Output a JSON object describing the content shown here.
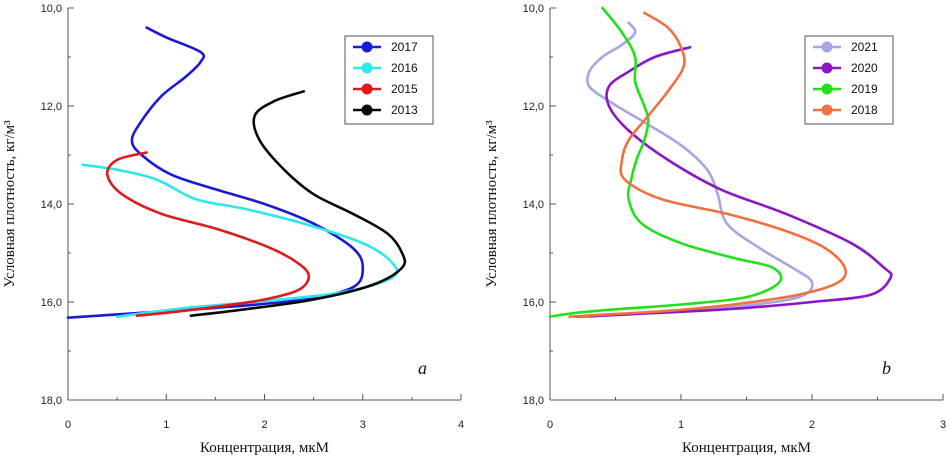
{
  "chart_data": [
    {
      "type": "line",
      "panel_label": "a",
      "xlabel": "Концентрация, мкМ",
      "ylabel": "Условная плотность, кг/м³",
      "xlim": [
        0,
        4
      ],
      "ylim": [
        10.0,
        18.0
      ],
      "y_inverted": true,
      "x_ticks": [
        "0",
        "1",
        "2",
        "3",
        "4"
      ],
      "y_ticks": [
        "10,0",
        "12,0",
        "14,0",
        "16,0",
        "18,0"
      ],
      "legend_position": "top-right",
      "series": [
        {
          "name": "2017",
          "color": "#1a1ad6",
          "points": [
            [
              0.8,
              10.4
            ],
            [
              1.0,
              10.6
            ],
            [
              1.35,
              10.9
            ],
            [
              1.35,
              11.1
            ],
            [
              1.2,
              11.4
            ],
            [
              0.95,
              11.8
            ],
            [
              0.75,
              12.3
            ],
            [
              0.65,
              12.7
            ],
            [
              0.75,
              13.0
            ],
            [
              1.05,
              13.4
            ],
            [
              1.5,
              13.7
            ],
            [
              2.0,
              14.0
            ],
            [
              2.5,
              14.4
            ],
            [
              2.9,
              14.9
            ],
            [
              3.0,
              15.3
            ],
            [
              2.9,
              15.7
            ],
            [
              2.4,
              15.95
            ],
            [
              1.5,
              16.12
            ],
            [
              0.6,
              16.24
            ],
            [
              0.0,
              16.32
            ]
          ]
        },
        {
          "name": "2016",
          "color": "#2ee6ee",
          "points": [
            [
              0.15,
              13.2
            ],
            [
              0.5,
              13.3
            ],
            [
              0.9,
              13.5
            ],
            [
              1.3,
              13.9
            ],
            [
              1.8,
              14.1
            ],
            [
              2.4,
              14.4
            ],
            [
              3.0,
              14.8
            ],
            [
              3.3,
              15.2
            ],
            [
              3.3,
              15.5
            ],
            [
              2.8,
              15.8
            ],
            [
              2.0,
              15.98
            ],
            [
              1.2,
              16.12
            ],
            [
              0.5,
              16.3
            ]
          ]
        },
        {
          "name": "2015",
          "color": "#e01a1a",
          "points": [
            [
              0.8,
              12.95
            ],
            [
              0.5,
              13.1
            ],
            [
              0.4,
              13.4
            ],
            [
              0.55,
              13.8
            ],
            [
              0.95,
              14.2
            ],
            [
              1.5,
              14.5
            ],
            [
              2.0,
              14.85
            ],
            [
              2.3,
              15.15
            ],
            [
              2.45,
              15.45
            ],
            [
              2.35,
              15.75
            ],
            [
              2.0,
              15.95
            ],
            [
              1.5,
              16.1
            ],
            [
              1.0,
              16.22
            ],
            [
              0.7,
              16.28
            ]
          ]
        },
        {
          "name": "2013",
          "color": "#0a0a0a",
          "points": [
            [
              2.4,
              11.7
            ],
            [
              2.1,
              11.9
            ],
            [
              1.9,
              12.2
            ],
            [
              1.95,
              12.7
            ],
            [
              2.2,
              13.3
            ],
            [
              2.5,
              13.8
            ],
            [
              2.9,
              14.2
            ],
            [
              3.25,
              14.6
            ],
            [
              3.4,
              15.0
            ],
            [
              3.4,
              15.3
            ],
            [
              3.1,
              15.65
            ],
            [
              2.5,
              15.95
            ],
            [
              1.8,
              16.15
            ],
            [
              1.25,
              16.28
            ]
          ]
        }
      ]
    },
    {
      "type": "line",
      "panel_label": "b",
      "xlabel": "Концентрация, мкМ",
      "ylabel": "Условная плотность, кг/м³",
      "xlim": [
        0,
        3
      ],
      "ylim": [
        10.0,
        18.0
      ],
      "y_inverted": true,
      "x_ticks": [
        "0",
        "1",
        "2",
        "3"
      ],
      "y_ticks": [
        "10,0",
        "12,0",
        "14,0",
        "16,0",
        "18,0"
      ],
      "legend_position": "top-right",
      "series": [
        {
          "name": "2021",
          "color": "#a9a5e2",
          "points": [
            [
              0.6,
              10.3
            ],
            [
              0.65,
              10.5
            ],
            [
              0.55,
              10.75
            ],
            [
              0.4,
              11.0
            ],
            [
              0.3,
              11.3
            ],
            [
              0.3,
              11.6
            ],
            [
              0.45,
              11.9
            ],
            [
              0.7,
              12.3
            ],
            [
              1.0,
              12.8
            ],
            [
              1.2,
              13.3
            ],
            [
              1.28,
              13.8
            ],
            [
              1.35,
              14.4
            ],
            [
              1.6,
              14.9
            ],
            [
              1.85,
              15.3
            ],
            [
              2.0,
              15.6
            ],
            [
              1.9,
              15.9
            ],
            [
              1.4,
              16.1
            ],
            [
              0.8,
              16.22
            ],
            [
              0.3,
              16.3
            ]
          ]
        },
        {
          "name": "2020",
          "color": "#8a16c4",
          "points": [
            [
              1.07,
              10.8
            ],
            [
              0.8,
              11.0
            ],
            [
              0.6,
              11.3
            ],
            [
              0.45,
              11.6
            ],
            [
              0.45,
              12.0
            ],
            [
              0.6,
              12.5
            ],
            [
              0.9,
              13.1
            ],
            [
              1.3,
              13.7
            ],
            [
              1.8,
              14.2
            ],
            [
              2.3,
              14.8
            ],
            [
              2.55,
              15.3
            ],
            [
              2.6,
              15.5
            ],
            [
              2.45,
              15.85
            ],
            [
              2.0,
              16.0
            ],
            [
              1.5,
              16.12
            ],
            [
              1.0,
              16.2
            ],
            [
              0.6,
              16.25
            ],
            [
              0.2,
              16.3
            ]
          ]
        },
        {
          "name": "2019",
          "color": "#22e01a",
          "points": [
            [
              0.4,
              10.0
            ],
            [
              0.55,
              10.5
            ],
            [
              0.65,
              11.0
            ],
            [
              0.65,
              11.5
            ],
            [
              0.72,
              12.0
            ],
            [
              0.75,
              12.3
            ],
            [
              0.72,
              12.7
            ],
            [
              0.66,
              13.1
            ],
            [
              0.62,
              13.5
            ],
            [
              0.6,
              13.9
            ],
            [
              0.7,
              14.4
            ],
            [
              1.0,
              14.8
            ],
            [
              1.4,
              15.1
            ],
            [
              1.7,
              15.3
            ],
            [
              1.75,
              15.6
            ],
            [
              1.5,
              15.9
            ],
            [
              1.0,
              16.05
            ],
            [
              0.5,
              16.15
            ],
            [
              0.2,
              16.22
            ],
            [
              0.0,
              16.3
            ]
          ]
        },
        {
          "name": "2018",
          "color": "#f07040",
          "points": [
            [
              0.72,
              10.1
            ],
            [
              0.9,
              10.4
            ],
            [
              1.0,
              10.8
            ],
            [
              1.02,
              11.2
            ],
            [
              0.9,
              11.7
            ],
            [
              0.75,
              12.2
            ],
            [
              0.6,
              12.7
            ],
            [
              0.55,
              13.1
            ],
            [
              0.57,
              13.5
            ],
            [
              0.85,
              13.9
            ],
            [
              1.35,
              14.2
            ],
            [
              1.8,
              14.55
            ],
            [
              2.1,
              14.9
            ],
            [
              2.25,
              15.3
            ],
            [
              2.2,
              15.6
            ],
            [
              1.9,
              15.85
            ],
            [
              1.4,
              16.05
            ],
            [
              0.9,
              16.18
            ],
            [
              0.4,
              16.26
            ],
            [
              0.15,
              16.3
            ]
          ]
        }
      ]
    }
  ]
}
